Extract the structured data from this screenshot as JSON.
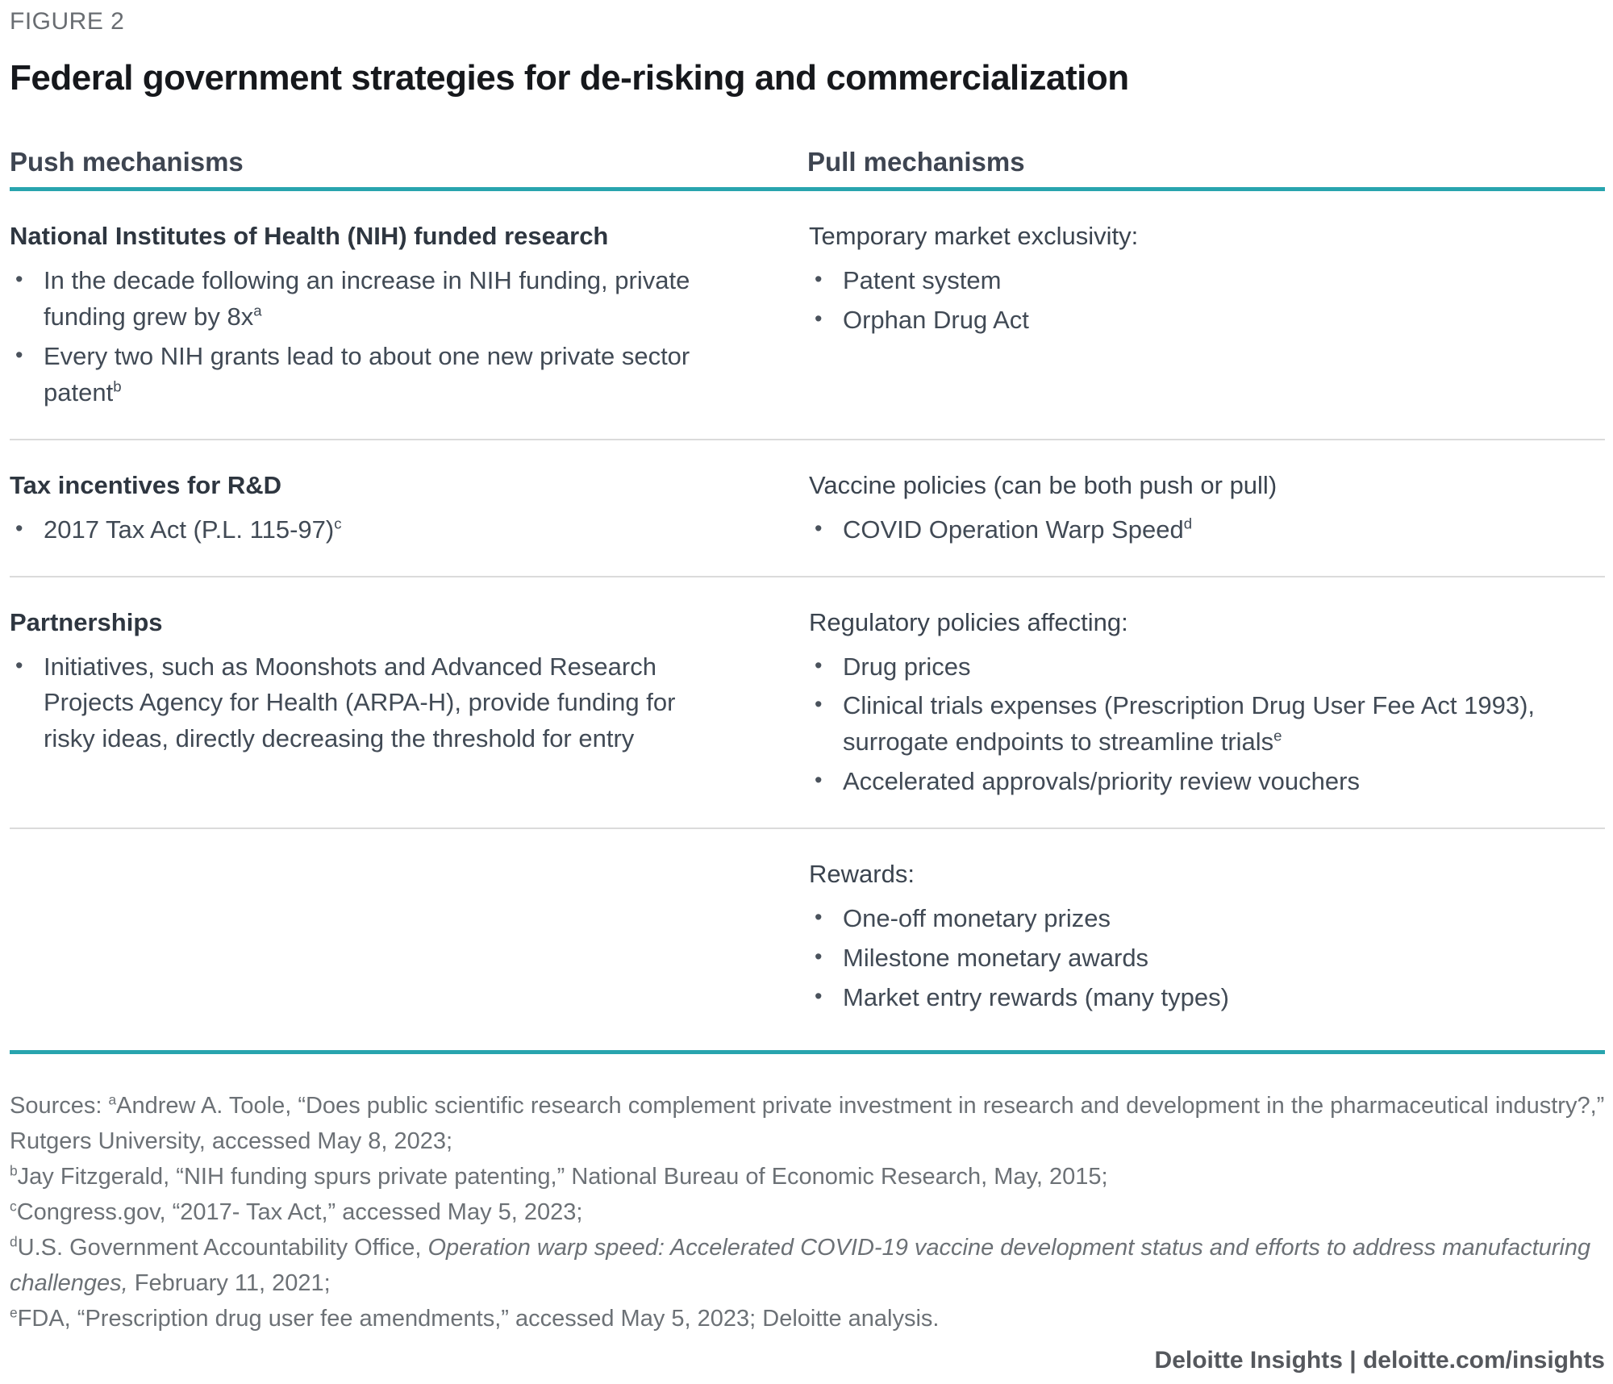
{
  "figure_label": "FIGURE 2",
  "title": "Federal government strategies for de-risking and commercialization",
  "columns": {
    "push": "Push mechanisms",
    "pull": "Pull mechanisms"
  },
  "colors": {
    "accent_teal": "#28a4ae",
    "divider_gray": "#dbdbdb"
  },
  "rows": [
    {
      "push": {
        "heading": "National Institutes of Health (NIH) funded research",
        "heading_bold": true,
        "bullets": [
          [
            {
              "t": "In the decade following an increase in NIH funding, private funding grew by 8x"
            },
            {
              "t": "a",
              "s": "sup"
            }
          ],
          [
            {
              "t": "Every two NIH grants lead to about one new private sector patent"
            },
            {
              "t": "b",
              "s": "sup"
            }
          ]
        ]
      },
      "pull": {
        "heading": "Temporary market exclusivity:",
        "heading_bold": false,
        "bullets": [
          [
            {
              "t": "Patent system"
            }
          ],
          [
            {
              "t": "Orphan Drug Act"
            }
          ]
        ]
      }
    },
    {
      "push": {
        "heading": "Tax incentives for R&D",
        "heading_bold": true,
        "bullets": [
          [
            {
              "t": "2017 Tax Act (P.L. 115-97)"
            },
            {
              "t": "c",
              "s": "sup"
            }
          ]
        ]
      },
      "pull": {
        "heading": "Vaccine policies (can be both push or pull)",
        "heading_bold": false,
        "bullets": [
          [
            {
              "t": "COVID Operation Warp Speed"
            },
            {
              "t": "d",
              "s": "sup"
            }
          ]
        ]
      }
    },
    {
      "push": {
        "heading": "Partnerships",
        "heading_bold": true,
        "bullets": [
          [
            {
              "t": "Initiatives, such as Moonshots and Advanced Research Projects Agency for Health (ARPA-H), provide funding for risky ideas, directly decreasing the threshold for entry"
            }
          ]
        ]
      },
      "pull": {
        "heading": "Regulatory policies affecting:",
        "heading_bold": false,
        "bullets": [
          [
            {
              "t": "Drug prices"
            }
          ],
          [
            {
              "t": "Clinical trials expenses (Prescription Drug User Fee Act 1993), surrogate endpoints to streamline trials"
            },
            {
              "t": "e",
              "s": "sup"
            }
          ],
          [
            {
              "t": "Accelerated approvals/priority review vouchers"
            }
          ]
        ]
      }
    },
    {
      "push": null,
      "pull": {
        "heading": "Rewards:",
        "heading_bold": false,
        "bullets": [
          [
            {
              "t": "One-off monetary prizes"
            }
          ],
          [
            {
              "t": "Milestone monetary awards"
            }
          ],
          [
            {
              "t": "Market entry rewards (many types)"
            }
          ]
        ]
      }
    }
  ],
  "sources": [
    [
      {
        "t": "Sources: "
      },
      {
        "t": "a",
        "s": "sup"
      },
      {
        "t": "Andrew A. Toole, “Does public scientific research complement private investment in research and development in the pharmaceutical industry?,” Rutgers University, accessed May 8, 2023;"
      }
    ],
    [
      {
        "t": "b",
        "s": "sup"
      },
      {
        "t": "Jay Fitzgerald, “NIH funding spurs private patenting,” National Bureau of Economic Research, May, 2015;"
      }
    ],
    [
      {
        "t": "c",
        "s": "sup"
      },
      {
        "t": "Congress.gov, “2017- Tax Act,” accessed May 5, 2023;"
      }
    ],
    [
      {
        "t": "d",
        "s": "sup"
      },
      {
        "t": "U.S. Government Accountability Office, "
      },
      {
        "t": "Operation warp speed: Accelerated COVID-19 vaccine development status and efforts to address manufacturing challenges,",
        "s": "italic"
      },
      {
        "t": " February 11, 2021;"
      }
    ],
    [
      {
        "t": "e",
        "s": "sup"
      },
      {
        "t": "FDA, “Prescription drug user fee amendments,” accessed May 5, 2023; Deloitte analysis."
      }
    ]
  ],
  "footer": "Deloitte Insights | deloitte.com/insights"
}
